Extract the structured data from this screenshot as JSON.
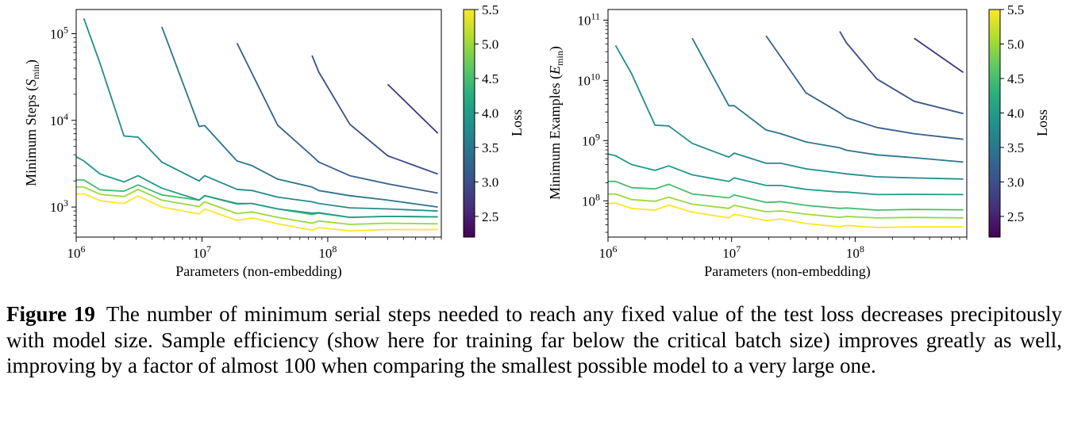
{
  "chart_data": [
    {
      "type": "line",
      "xscale": "log",
      "yscale": "log",
      "xlabel": "Parameters (non-embedding)",
      "ylabel_main": "Minimum Steps (",
      "ylabel_symbol": "S",
      "ylabel_sub": "min",
      "ylabel_end": ")",
      "xlim": [
        1000000,
        800000000
      ],
      "ylim": [
        450,
        190000
      ],
      "xticks": [
        {
          "value": 1000000,
          "base": "10",
          "exp": "6"
        },
        {
          "value": 10000000,
          "base": "10",
          "exp": "7"
        },
        {
          "value": 100000000,
          "base": "10",
          "exp": "8"
        }
      ],
      "yticks": [
        {
          "value": 1000,
          "base": "10",
          "exp": "3"
        },
        {
          "value": 10000,
          "base": "10",
          "exp": "4"
        },
        {
          "value": 100000,
          "base": "10",
          "exp": "5"
        }
      ],
      "colorbar": {
        "label": "Loss",
        "ticks": [
          "2.5",
          "3.0",
          "3.5",
          "4.0",
          "4.5",
          "5.0",
          "5.5"
        ],
        "range": [
          2.2,
          5.5
        ]
      },
      "series": [
        {
          "loss": 5.5,
          "x": [
            1000000,
            1150000,
            1550000,
            2400000,
            3100000,
            4800000,
            9500000,
            10500000,
            19000000,
            25000000,
            40000000,
            75000000,
            85000000,
            150000000,
            300000000,
            750000000
          ],
          "y": [
            1400,
            1420,
            1180,
            1100,
            1340,
            1000,
            830,
            950,
            700,
            750,
            640,
            540,
            580,
            530,
            550,
            550
          ]
        },
        {
          "loss": 5.0,
          "x": [
            1000000,
            1150000,
            1550000,
            2400000,
            3100000,
            4800000,
            9500000,
            10500000,
            19000000,
            25000000,
            40000000,
            75000000,
            85000000,
            150000000,
            300000000,
            750000000
          ],
          "y": [
            1700,
            1700,
            1400,
            1320,
            1600,
            1200,
            1010,
            1150,
            840,
            880,
            760,
            650,
            690,
            630,
            650,
            640
          ]
        },
        {
          "loss": 4.5,
          "x": [
            1000000,
            1150000,
            1550000,
            2400000,
            3100000,
            4800000,
            9500000,
            10500000,
            19000000,
            25000000,
            40000000,
            75000000,
            85000000,
            150000000,
            300000000,
            750000000
          ],
          "y": [
            2050,
            2050,
            1580,
            1520,
            1800,
            1380,
            1200,
            1350,
            1080,
            1100,
            950,
            820,
            850,
            760,
            780,
            770
          ]
        },
        {
          "loss": 4.0,
          "x": [
            1000000,
            1150000,
            1550000,
            2400000,
            3100000,
            4800000,
            9500000,
            10500000,
            19000000,
            25000000,
            40000000,
            75000000,
            85000000,
            150000000,
            300000000,
            750000000
          ],
          "y": [
            3800,
            3400,
            2400,
            1950,
            2300,
            1650,
            1200,
            1350,
            1100,
            1100,
            950,
            850,
            860,
            760,
            780,
            770
          ]
        },
        {
          "loss": 3.8,
          "x": [
            1150000,
            1550000,
            2400000,
            3100000,
            4800000,
            9500000,
            10500000,
            19000000,
            25000000,
            40000000,
            75000000,
            85000000,
            150000000,
            300000000,
            750000000
          ],
          "y": [
            150000,
            45000,
            6600,
            6400,
            3300,
            2000,
            2300,
            1600,
            1550,
            1300,
            1150,
            1100,
            980,
            950,
            900
          ]
        },
        {
          "loss": 3.5,
          "x": [
            4800000,
            9500000,
            10500000,
            19000000,
            25000000,
            40000000,
            75000000,
            85000000,
            150000000,
            300000000,
            750000000
          ],
          "y": [
            120000,
            8500,
            8700,
            3400,
            3000,
            2100,
            1700,
            1550,
            1350,
            1200,
            1000
          ]
        },
        {
          "loss": 3.2,
          "x": [
            19000000,
            40000000,
            75000000,
            85000000,
            150000000,
            300000000,
            750000000
          ],
          "y": [
            78000,
            8800,
            3900,
            3300,
            2300,
            1850,
            1450
          ]
        },
        {
          "loss": 3.0,
          "x": [
            75000000,
            85000000,
            150000000,
            300000000,
            750000000
          ],
          "y": [
            56000,
            36000,
            9000,
            3900,
            2400
          ]
        },
        {
          "loss": 2.7,
          "x": [
            300000000,
            750000000
          ],
          "y": [
            26000,
            7100
          ]
        }
      ]
    },
    {
      "type": "line",
      "xscale": "log",
      "yscale": "log",
      "xlabel": "Parameters (non-embedding)",
      "ylabel_main": "Minimum Examples (",
      "ylabel_symbol": "E",
      "ylabel_sub": "min",
      "ylabel_end": ")",
      "xlim": [
        1000000,
        800000000
      ],
      "ylim": [
        25000000,
        150000000000
      ],
      "xticks": [
        {
          "value": 1000000,
          "base": "10",
          "exp": "6"
        },
        {
          "value": 10000000,
          "base": "10",
          "exp": "7"
        },
        {
          "value": 100000000,
          "base": "10",
          "exp": "8"
        }
      ],
      "yticks": [
        {
          "value": 100000000,
          "base": "10",
          "exp": "8"
        },
        {
          "value": 1000000000,
          "base": "10",
          "exp": "9"
        },
        {
          "value": 10000000000,
          "base": "10",
          "exp": "10"
        },
        {
          "value": 100000000000,
          "base": "10",
          "exp": "11"
        }
      ],
      "colorbar": {
        "label": "Loss",
        "ticks": [
          "2.5",
          "3.0",
          "3.5",
          "4.0",
          "4.5",
          "5.0",
          "5.5"
        ],
        "range": [
          2.2,
          5.5
        ]
      },
      "series": [
        {
          "loss": 5.5,
          "x": [
            1000000,
            1150000,
            1550000,
            2400000,
            3100000,
            4800000,
            9500000,
            10500000,
            19000000,
            25000000,
            40000000,
            75000000,
            85000000,
            150000000,
            300000000,
            750000000
          ],
          "y": [
            90000000,
            92000000,
            75000000,
            70000000,
            85000000,
            65000000,
            52000000,
            60000000,
            47000000,
            50000000,
            42000000,
            37000000,
            39000000,
            36000000,
            37000000,
            37000000
          ]
        },
        {
          "loss": 5.0,
          "x": [
            1000000,
            1150000,
            1550000,
            2400000,
            3100000,
            4800000,
            9500000,
            10500000,
            19000000,
            25000000,
            40000000,
            75000000,
            85000000,
            150000000,
            300000000,
            750000000
          ],
          "y": [
            130000000,
            130000000,
            105000000,
            98000000,
            115000000,
            88000000,
            75000000,
            84000000,
            66000000,
            68000000,
            60000000,
            53000000,
            55000000,
            52000000,
            53000000,
            52000000
          ]
        },
        {
          "loss": 4.5,
          "x": [
            1000000,
            1150000,
            1550000,
            2400000,
            3100000,
            4800000,
            9500000,
            10500000,
            19000000,
            25000000,
            40000000,
            75000000,
            85000000,
            150000000,
            300000000,
            750000000
          ],
          "y": [
            210000000,
            210000000,
            165000000,
            158000000,
            188000000,
            130000000,
            112000000,
            125000000,
            94000000,
            97000000,
            84000000,
            75000000,
            76000000,
            70000000,
            72000000,
            71000000
          ]
        },
        {
          "loss": 4.0,
          "x": [
            1000000,
            1150000,
            1550000,
            2400000,
            3100000,
            4800000,
            9500000,
            10500000,
            19000000,
            25000000,
            40000000,
            75000000,
            85000000,
            150000000,
            300000000,
            750000000
          ],
          "y": [
            600000000,
            560000000,
            400000000,
            320000000,
            380000000,
            270000000,
            210000000,
            240000000,
            180000000,
            180000000,
            155000000,
            140000000,
            140000000,
            127000000,
            128000000,
            127000000
          ]
        },
        {
          "loss": 3.8,
          "x": [
            1150000,
            1550000,
            2400000,
            3100000,
            4800000,
            9500000,
            10500000,
            19000000,
            25000000,
            40000000,
            75000000,
            85000000,
            150000000,
            300000000,
            750000000
          ],
          "y": [
            38000000000,
            13000000000,
            1800000000,
            1750000000,
            900000000,
            530000000,
            620000000,
            420000000,
            420000000,
            340000000,
            290000000,
            280000000,
            250000000,
            240000000,
            230000000
          ]
        },
        {
          "loss": 3.5,
          "x": [
            4800000,
            9500000,
            10500000,
            19000000,
            25000000,
            40000000,
            75000000,
            85000000,
            150000000,
            300000000,
            750000000
          ],
          "y": [
            50000000000,
            3800000000,
            3800000000,
            1500000000,
            1300000000,
            950000000,
            760000000,
            690000000,
            580000000,
            520000000,
            440000000
          ]
        },
        {
          "loss": 3.2,
          "x": [
            19000000,
            40000000,
            75000000,
            85000000,
            150000000,
            300000000,
            750000000
          ],
          "y": [
            55000000000,
            6200000000,
            2900000000,
            2400000000,
            1650000000,
            1300000000,
            1050000000
          ]
        },
        {
          "loss": 3.0,
          "x": [
            75000000,
            85000000,
            150000000,
            300000000,
            750000000
          ],
          "y": [
            65000000000,
            42000000000,
            10500000000,
            4500000000,
            2800000000
          ]
        },
        {
          "loss": 2.7,
          "x": [
            300000000,
            750000000
          ],
          "y": [
            50000000000,
            13500000000
          ]
        }
      ]
    }
  ],
  "caption": {
    "figure_label": "Figure 19",
    "text": "The number of minimum serial steps needed to reach any fixed value of the test loss decreases precipitously with model size. Sample efficiency (show here for training far below the critical batch size) improves greatly as well, improving by a factor of almost 100 when comparing the smallest possible model to a very large one."
  }
}
